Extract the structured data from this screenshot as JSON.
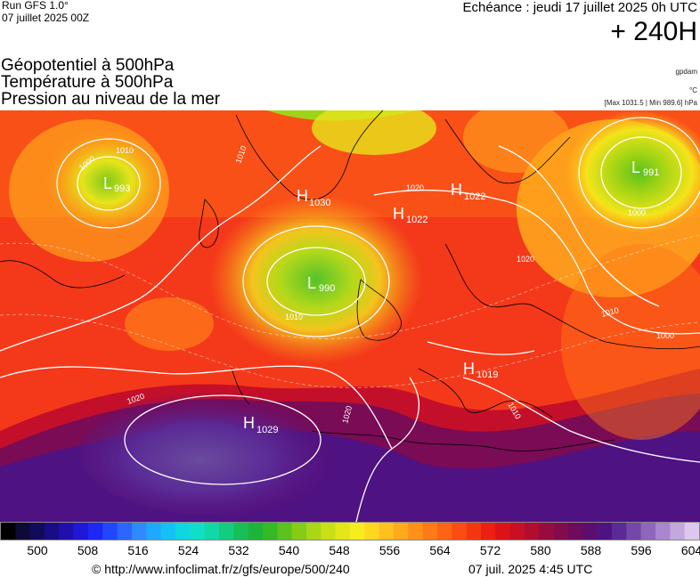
{
  "header": {
    "run_title": "Run GFS 1.0°",
    "run_date": "07 juillet 2025 00Z",
    "valid_time": "Echéance : jeudi 17 juillet 2025 0h UTC",
    "lead_time": "+ 240H"
  },
  "parameters": [
    "Géopotentiel à 500hPa",
    "Température à 500hPa",
    "Pression au niveau de la mer"
  ],
  "units": {
    "geopotential": "gpdam",
    "temperature": "°C",
    "pressure_range": "[Max 1031.5 | Min 989.6] hPa"
  },
  "pressure_centers": [
    {
      "type": "L",
      "value": "990"
    },
    {
      "type": "L",
      "value": "991"
    },
    {
      "type": "L",
      "value": "993"
    },
    {
      "type": "H",
      "value": "1029"
    },
    {
      "type": "H",
      "value": "1022"
    },
    {
      "type": "H",
      "value": "1022"
    },
    {
      "type": "H",
      "value": "1030"
    },
    {
      "type": "H",
      "value": "1019"
    }
  ],
  "isobar_labels": [
    "1000",
    "1010",
    "1020",
    "1020",
    "1020",
    "1010",
    "1000",
    "1010",
    "1020",
    "1010",
    "1010",
    "1000"
  ],
  "colorbar": {
    "ticks": [
      "500",
      "508",
      "516",
      "524",
      "532",
      "540",
      "548",
      "556",
      "564",
      "572",
      "580",
      "588",
      "596",
      "604"
    ],
    "colors": [
      "#000000",
      "#0d0a36",
      "#130a5c",
      "#1a0c86",
      "#1f10ad",
      "#2018d6",
      "#1d28f4",
      "#2046ff",
      "#2a66ff",
      "#2f8aff",
      "#1fa8ff",
      "#13c2f5",
      "#10d5e3",
      "#10dec8",
      "#10d8a6",
      "#12cc80",
      "#17bf58",
      "#1cb43a",
      "#35b927",
      "#5cc21d",
      "#84cc17",
      "#aad615",
      "#c9df16",
      "#e4e619",
      "#f7ec1d",
      "#ffd81f",
      "#ffc01f",
      "#ffa91d",
      "#ff9119",
      "#ff7a16",
      "#ff6314",
      "#fb4c12",
      "#f43610",
      "#ec1f12",
      "#dd1218",
      "#c80f24",
      "#b00d31",
      "#980b3e",
      "#820b4c",
      "#6e0b5c",
      "#5c0d70",
      "#4e1283",
      "#5a2a96",
      "#7447a8",
      "#8f66bb",
      "#a986ce",
      "#c3a7df",
      "#dcc8ee"
    ]
  },
  "footer": {
    "url": "© http://www.infoclimat.fr/z/gfs/europe/500/240",
    "timestamp": "07 juil. 2025  4:45 UTC"
  }
}
